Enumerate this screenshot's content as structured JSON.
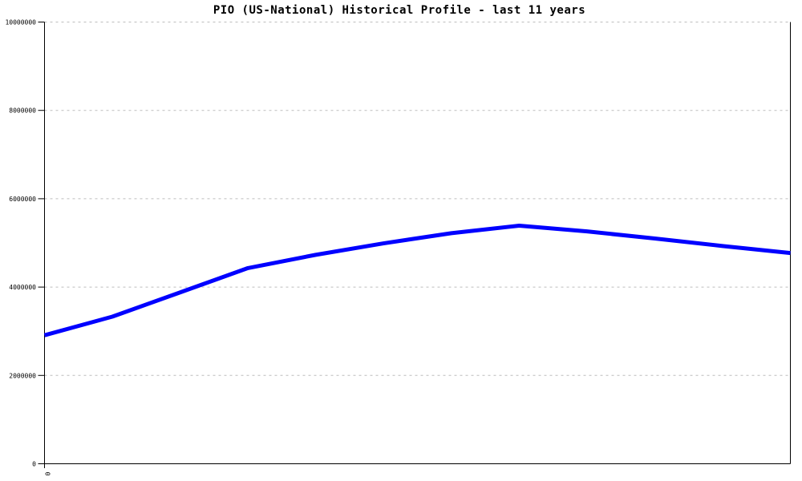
{
  "title": "PIO (US-National) Historical Profile - last 11 years",
  "colors": {
    "line": "#0000ff",
    "grid": "#bdbdbd",
    "axis": "#000000",
    "text": "#000000",
    "background": "#ffffff"
  },
  "chart_data": {
    "type": "line",
    "title": "PIO (US-National) Historical Profile - last 11 years",
    "xlabel": "",
    "ylabel": "",
    "x": [
      0,
      1,
      2,
      3,
      4,
      5,
      6,
      7,
      8,
      9,
      10,
      11
    ],
    "series": [
      {
        "name": "PIO (US-National)",
        "color": "#0000ff",
        "values": [
          2910000,
          3330000,
          3880000,
          4430000,
          4730000,
          4990000,
          5220000,
          5390000,
          5260000,
          5100000,
          4930000,
          4770000
        ]
      }
    ],
    "ylim": [
      0,
      10000000
    ],
    "yticks": [
      0,
      2000000,
      4000000,
      6000000,
      8000000,
      10000000
    ],
    "ytick_labels": [
      "0",
      "2000000",
      "4000000",
      "6000000",
      "8000000",
      "10000000"
    ],
    "visible_xtick_labels": [
      "0"
    ],
    "grid": "horizontal dotted gridlines",
    "legend": "none",
    "notes": "thick blue line, no markers; single x tick label 0 rotated 90deg at origin; plot framed by left y-axis, bottom x-axis and right border"
  }
}
